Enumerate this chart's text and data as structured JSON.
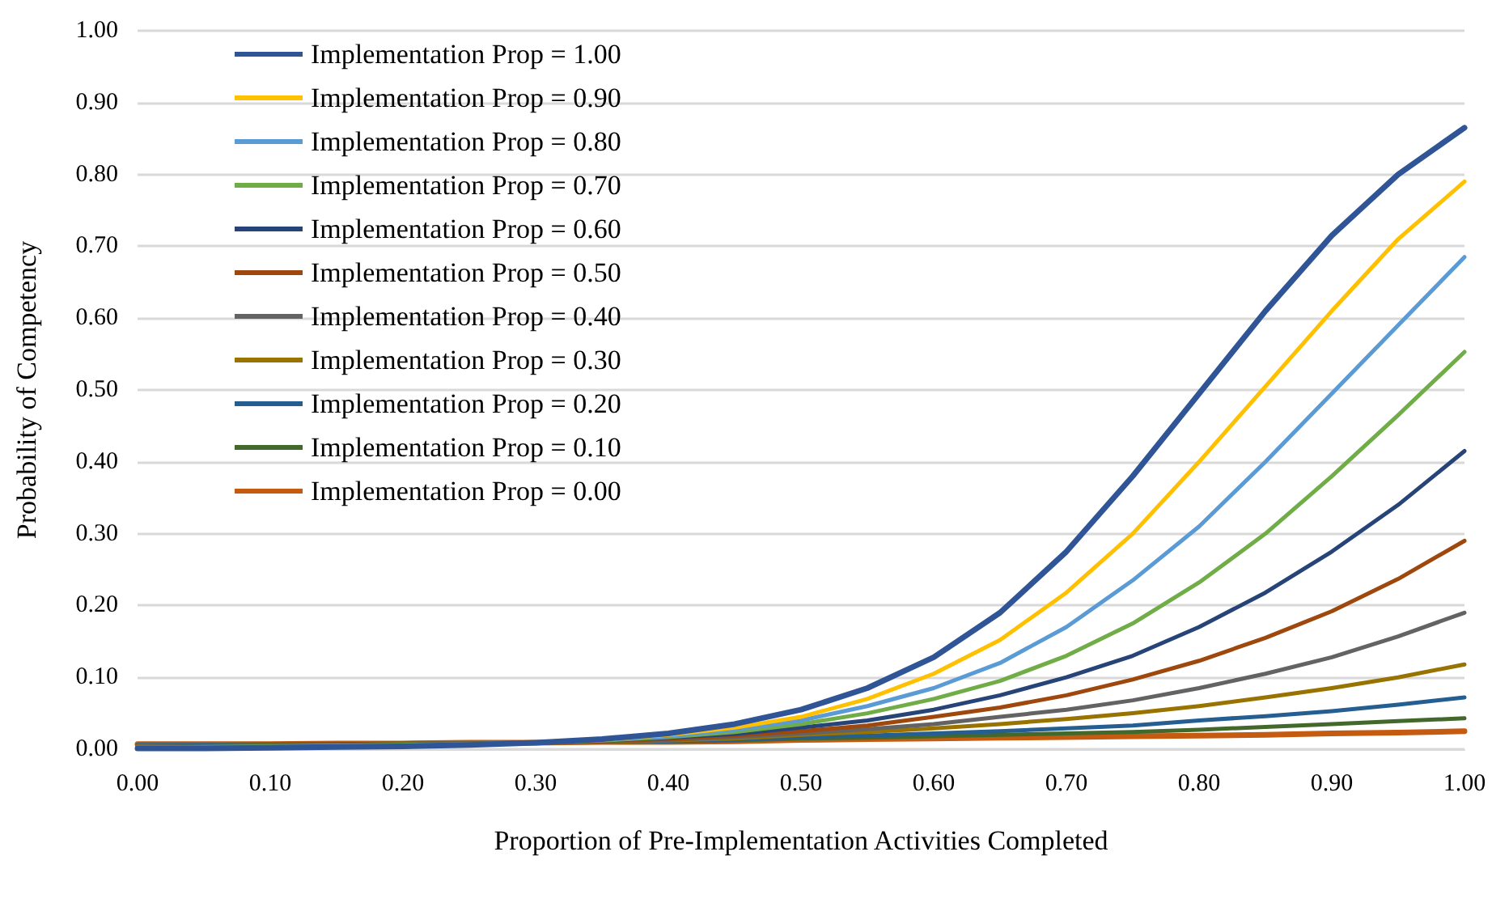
{
  "chart_data": {
    "type": "line",
    "xlabel": "Proportion of Pre-Implementation Activities Completed",
    "ylabel": "Probability of Competency",
    "x": [
      0,
      0.05,
      0.1,
      0.15,
      0.2,
      0.25,
      0.3,
      0.35,
      0.4,
      0.45,
      0.5,
      0.55,
      0.6,
      0.65,
      0.7,
      0.75,
      0.8,
      0.85,
      0.9,
      0.95,
      1
    ],
    "xlim": [
      0,
      1
    ],
    "xticks": [
      {
        "value": 0,
        "label": "0.00"
      },
      {
        "value": 0.1,
        "label": "0.10"
      },
      {
        "value": 0.2,
        "label": "0.20"
      },
      {
        "value": 0.3,
        "label": "0.30"
      },
      {
        "value": 0.4,
        "label": "0.40"
      },
      {
        "value": 0.5,
        "label": "0.50"
      },
      {
        "value": 0.6,
        "label": "0.60"
      },
      {
        "value": 0.7,
        "label": "0.70"
      },
      {
        "value": 0.8,
        "label": "0.80"
      },
      {
        "value": 0.9,
        "label": "0.90"
      },
      {
        "value": 1,
        "label": "1.00"
      }
    ],
    "ylim": [
      0,
      1
    ],
    "yticks": [
      {
        "value": 0,
        "label": "0.00"
      },
      {
        "value": 0.1,
        "label": "0.10"
      },
      {
        "value": 0.2,
        "label": "0.20"
      },
      {
        "value": 0.3,
        "label": "0.30"
      },
      {
        "value": 0.4,
        "label": "0.40"
      },
      {
        "value": 0.5,
        "label": "0.50"
      },
      {
        "value": 0.6,
        "label": "0.60"
      },
      {
        "value": 0.7,
        "label": "0.70"
      },
      {
        "value": 0.8,
        "label": "0.80"
      },
      {
        "value": 0.9,
        "label": "0.90"
      },
      {
        "value": 1,
        "label": "1.00"
      }
    ],
    "grid": "y",
    "legend": "top left",
    "marker": "none",
    "line_style": "solid",
    "series": [
      {
        "name": "Implementation Prop = 1.00",
        "color": "#2f5597",
        "values": [
          0.001,
          0.001,
          0.002,
          0.003,
          0.004,
          0.006,
          0.009,
          0.014,
          0.022,
          0.035,
          0.055,
          0.085,
          0.128,
          0.19,
          0.275,
          0.38,
          0.495,
          0.61,
          0.715,
          0.8,
          0.865
        ]
      },
      {
        "name": "Implementation Prop = 0.90",
        "color": "#ffc000",
        "values": [
          null,
          null,
          null,
          null,
          null,
          null,
          null,
          0.013,
          0.02,
          0.03,
          0.045,
          0.07,
          0.105,
          0.152,
          0.218,
          0.3,
          0.4,
          0.505,
          0.61,
          0.71,
          0.79
        ]
      },
      {
        "name": "Implementation Prop = 0.80",
        "color": "#5b9bd5",
        "values": [
          0.002,
          0.003,
          0.003,
          0.004,
          0.005,
          0.007,
          0.009,
          0.013,
          0.018,
          0.027,
          0.04,
          0.06,
          0.085,
          0.12,
          0.17,
          0.235,
          0.31,
          0.4,
          0.495,
          0.59,
          0.685
        ]
      },
      {
        "name": "Implementation Prop = 0.70",
        "color": "#70ad47",
        "values": [
          0.003,
          0.003,
          0.004,
          0.005,
          0.006,
          0.007,
          0.009,
          0.012,
          0.017,
          0.024,
          0.035,
          0.05,
          0.07,
          0.095,
          0.13,
          0.175,
          0.232,
          0.3,
          0.38,
          0.465,
          0.553
        ]
      },
      {
        "name": "Implementation Prop = 0.60",
        "color": "#264478",
        "values": [
          0.003,
          0.004,
          0.004,
          0.005,
          0.006,
          0.007,
          0.009,
          0.012,
          0.016,
          0.021,
          0.03,
          0.04,
          0.055,
          0.075,
          0.1,
          0.13,
          0.17,
          0.218,
          0.275,
          0.34,
          0.415
        ]
      },
      {
        "name": "Implementation Prop = 0.50",
        "color": "#9e480e",
        "values": [
          0.004,
          0.004,
          0.005,
          0.005,
          0.006,
          0.007,
          0.009,
          0.011,
          0.014,
          0.019,
          0.025,
          0.033,
          0.045,
          0.058,
          0.075,
          0.097,
          0.123,
          0.155,
          0.192,
          0.237,
          0.29
        ]
      },
      {
        "name": "Implementation Prop = 0.40",
        "color": "#636363",
        "values": [
          0.004,
          0.005,
          0.005,
          0.006,
          0.007,
          0.008,
          0.009,
          0.011,
          0.013,
          0.017,
          0.022,
          0.028,
          0.035,
          0.045,
          0.055,
          0.068,
          0.085,
          0.105,
          0.128,
          0.157,
          0.19
        ]
      },
      {
        "name": "Implementation Prop = 0.30",
        "color": "#997300",
        "values": [
          0.005,
          0.005,
          0.006,
          0.006,
          0.007,
          0.008,
          0.009,
          0.01,
          0.012,
          0.015,
          0.02,
          0.024,
          0.029,
          0.035,
          0.042,
          0.05,
          0.06,
          0.072,
          0.085,
          0.1,
          0.118
        ]
      },
      {
        "name": "Implementation Prop = 0.20",
        "color": "#255e91",
        "values": [
          0.006,
          0.006,
          0.006,
          0.007,
          0.007,
          0.008,
          0.009,
          0.01,
          0.011,
          0.013,
          0.017,
          0.019,
          0.022,
          0.025,
          0.029,
          0.033,
          0.04,
          0.046,
          0.053,
          0.062,
          0.072
        ]
      },
      {
        "name": "Implementation Prop = 0.10",
        "color": "#43682b",
        "values": [
          0.006,
          0.006,
          0.007,
          0.007,
          0.008,
          0.008,
          0.009,
          0.01,
          0.011,
          0.012,
          0.015,
          0.016,
          0.018,
          0.02,
          0.022,
          0.024,
          0.027,
          0.031,
          0.035,
          0.039,
          0.043
        ]
      },
      {
        "name": "Implementation Prop = 0.00",
        "color": "#c55a11",
        "values": [
          0.007,
          0.007,
          0.007,
          0.008,
          0.008,
          0.009,
          0.009,
          0.01,
          0.01,
          0.011,
          0.013,
          0.014,
          0.015,
          0.016,
          0.017,
          0.018,
          0.019,
          0.02,
          0.022,
          0.023,
          0.025
        ]
      }
    ]
  }
}
